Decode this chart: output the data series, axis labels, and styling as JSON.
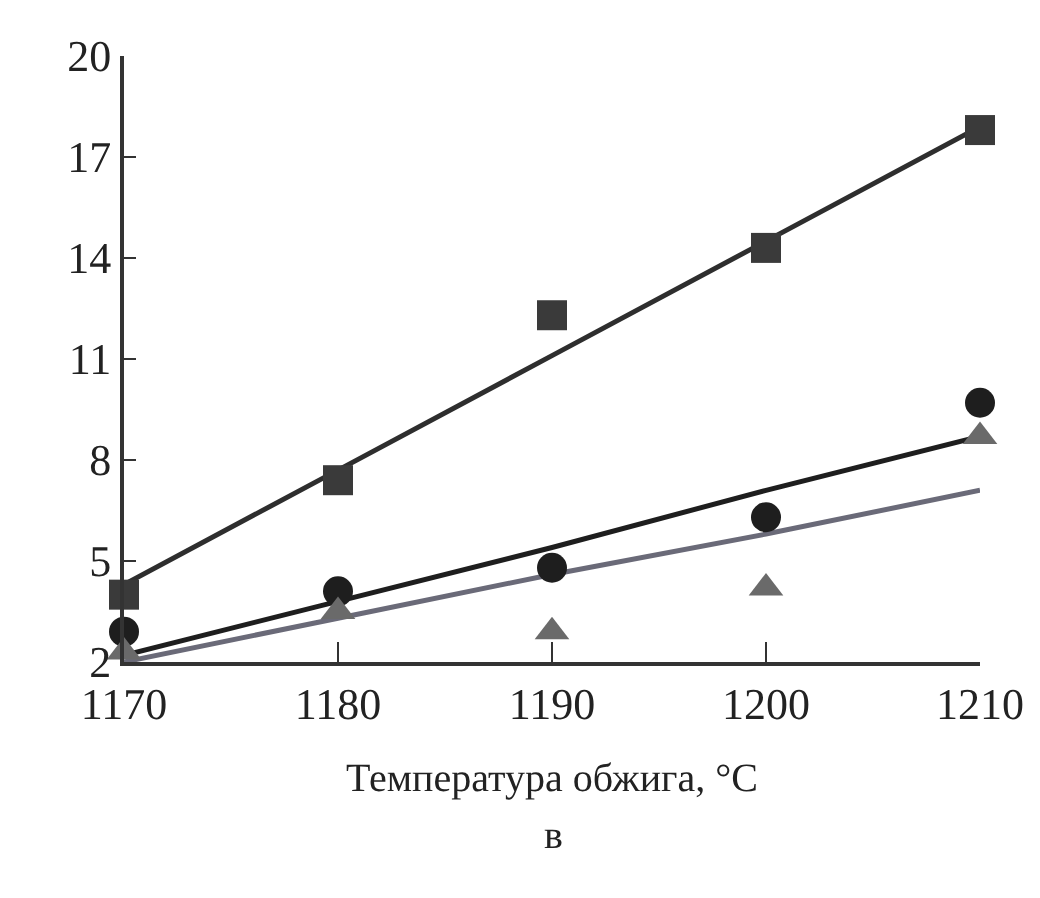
{
  "chart_data": {
    "type": "scatter",
    "xlabel": "Температура обжига, °C",
    "annotations": [
      "в"
    ],
    "x": [
      1170,
      1180,
      1190,
      1200,
      1210
    ],
    "series": [
      {
        "marker": "square",
        "color": "#3a3a3a",
        "values": [
          4.0,
          7.4,
          12.3,
          14.3,
          17.8
        ]
      },
      {
        "marker": "circle",
        "color": "#1e1e1e",
        "values": [
          2.9,
          4.1,
          4.8,
          6.3,
          9.7
        ]
      },
      {
        "marker": "triangle",
        "color": "#6a6a6a",
        "values": [
          2.3,
          3.5,
          2.9,
          4.2,
          8.7
        ]
      },
      {
        "type": "line",
        "marker": "none",
        "color": "#2e2e2e",
        "values": [
          4.3,
          7.7,
          11.1,
          14.5,
          17.9
        ]
      },
      {
        "type": "line",
        "marker": "none",
        "color": "#1e1e1e",
        "values": [
          2.2,
          3.8,
          5.4,
          7.1,
          8.7
        ]
      },
      {
        "type": "line",
        "marker": "none",
        "color": "#6a6a78",
        "values": [
          2.0,
          3.3,
          4.6,
          5.8,
          7.1
        ]
      }
    ],
    "xlim": [
      1170,
      1210
    ],
    "xticks": [
      1170,
      1180,
      1190,
      1200,
      1210
    ],
    "ylim": [
      2,
      20
    ],
    "yticks": [
      2,
      5,
      8,
      11,
      14,
      17,
      20
    ],
    "grid": false
  }
}
